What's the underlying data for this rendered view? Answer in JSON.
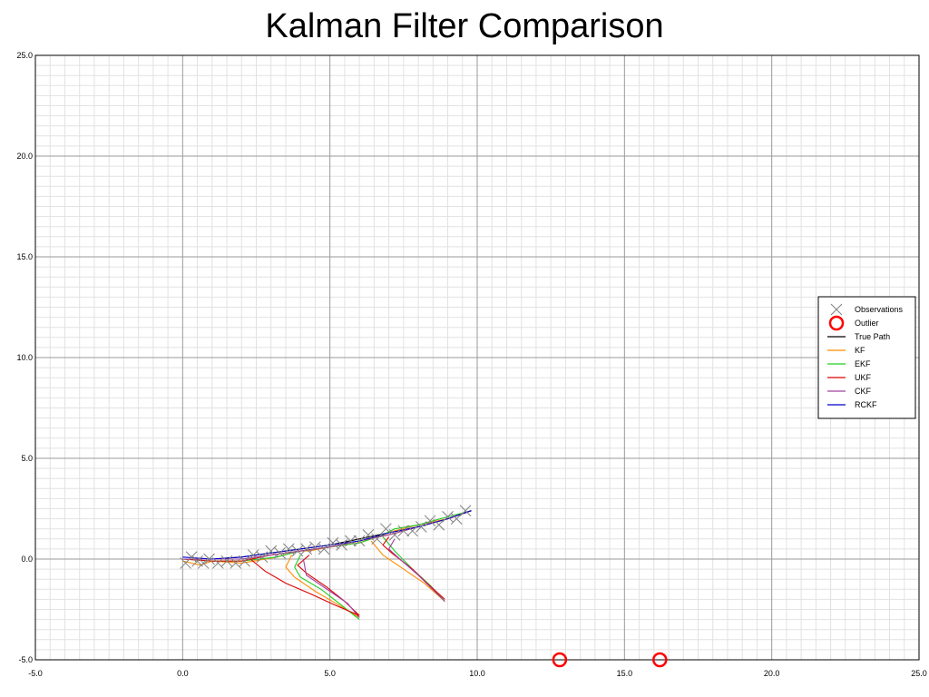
{
  "chart_data": {
    "type": "line",
    "title": "Kalman Filter Comparison",
    "xlabel": "",
    "ylabel": "",
    "xlim": [
      -5,
      25
    ],
    "ylim": [
      -5,
      25
    ],
    "x_ticks": [
      "-5.0",
      "0.0",
      "5.0",
      "10.0",
      "15.0",
      "20.0",
      "25.0"
    ],
    "y_ticks": [
      "-5.0",
      "0.0",
      "5.0",
      "10.0",
      "15.0",
      "20.0",
      "25.0"
    ],
    "grid": true,
    "legend_position": "right",
    "observations": {
      "name": "Observations",
      "points": [
        [
          0.1,
          -0.2
        ],
        [
          0.3,
          0.1
        ],
        [
          0.5,
          -0.1
        ],
        [
          0.7,
          -0.2
        ],
        [
          0.9,
          0.0
        ],
        [
          1.2,
          -0.2
        ],
        [
          1.5,
          -0.1
        ],
        [
          1.8,
          -0.2
        ],
        [
          2.1,
          -0.1
        ],
        [
          2.4,
          0.2
        ],
        [
          2.7,
          0.1
        ],
        [
          3.0,
          0.4
        ],
        [
          3.3,
          0.3
        ],
        [
          3.6,
          0.5
        ],
        [
          3.9,
          0.4
        ],
        [
          4.2,
          0.5
        ],
        [
          4.5,
          0.6
        ],
        [
          4.8,
          0.5
        ],
        [
          5.1,
          0.8
        ],
        [
          5.4,
          0.7
        ],
        [
          5.7,
          0.9
        ],
        [
          6.0,
          0.9
        ],
        [
          6.3,
          1.2
        ],
        [
          6.6,
          1.0
        ],
        [
          6.9,
          1.5
        ],
        [
          7.2,
          1.2
        ],
        [
          7.5,
          1.4
        ],
        [
          7.8,
          1.4
        ],
        [
          8.1,
          1.6
        ],
        [
          8.4,
          1.9
        ],
        [
          8.7,
          1.7
        ],
        [
          9.0,
          2.1
        ],
        [
          9.3,
          2.0
        ],
        [
          9.6,
          2.4
        ]
      ]
    },
    "outliers": {
      "name": "Outlier",
      "points": [
        [
          12.8,
          -5.0
        ],
        [
          16.2,
          -5.0
        ]
      ]
    },
    "series": [
      {
        "name": "True Path",
        "color": "#000000",
        "x": [
          0.0,
          1.0,
          2.0,
          3.0,
          4.0,
          5.0,
          6.0,
          7.0,
          8.0,
          9.0,
          9.8
        ],
        "y": [
          0.0,
          0.0,
          0.1,
          0.3,
          0.5,
          0.7,
          1.0,
          1.3,
          1.6,
          2.0,
          2.4
        ]
      },
      {
        "name": "KF",
        "color": "#ff8c00",
        "x": [
          0.0,
          0.6,
          1.0,
          2.0,
          3.2,
          3.7,
          4.0,
          4.3,
          5.0,
          6.0,
          6.4,
          6.8,
          7.2,
          8.0,
          9.0,
          9.8
        ],
        "y": [
          -0.1,
          -0.3,
          -0.1,
          -0.2,
          0.1,
          0.3,
          0.4,
          0.4,
          0.6,
          0.8,
          1.0,
          1.2,
          1.4,
          1.7,
          2.0,
          2.4
        ]
      },
      {
        "name": "EKF",
        "color": "#22cc22",
        "x": [
          0.0,
          1.0,
          2.0,
          3.2,
          3.7,
          4.0,
          4.5,
          5.0,
          6.0,
          6.4,
          6.8,
          7.2,
          8.0,
          9.0,
          9.8
        ],
        "y": [
          0.0,
          -0.1,
          -0.1,
          0.1,
          0.3,
          0.4,
          0.5,
          0.6,
          0.8,
          1.0,
          1.2,
          1.5,
          1.7,
          2.1,
          2.4
        ]
      },
      {
        "name": "UKF",
        "color": "#dd0000",
        "x": [
          0.0,
          1.0,
          2.0,
          3.0,
          4.0,
          5.0,
          6.0,
          7.0,
          8.0,
          9.0,
          9.8
        ],
        "y": [
          0.0,
          -0.1,
          -0.1,
          0.2,
          0.4,
          0.6,
          0.9,
          1.2,
          1.6,
          2.0,
          2.4
        ]
      },
      {
        "name": "CKF",
        "color": "#a040a0",
        "x": [
          0.0,
          1.0,
          2.0,
          3.0,
          4.0,
          5.0,
          6.0,
          7.0,
          8.0,
          9.0,
          9.8
        ],
        "y": [
          0.0,
          0.0,
          0.0,
          0.2,
          0.4,
          0.6,
          0.9,
          1.2,
          1.6,
          2.0,
          2.4
        ]
      },
      {
        "name": "RCKF",
        "color": "#0000cc",
        "x": [
          0.0,
          1.0,
          2.0,
          3.0,
          4.0,
          5.0,
          6.0,
          7.0,
          8.0,
          9.0,
          9.8
        ],
        "y": [
          0.1,
          0.0,
          0.1,
          0.3,
          0.5,
          0.7,
          0.9,
          1.3,
          1.6,
          2.0,
          2.4
        ]
      }
    ],
    "branches": [
      {
        "series": "KF",
        "color": "#ff8c00",
        "x": [
          3.7,
          3.5,
          3.8,
          4.5,
          5.2,
          6.0
        ],
        "y": [
          0.2,
          -0.4,
          -0.9,
          -1.6,
          -2.2,
          -2.9
        ]
      },
      {
        "series": "EKF",
        "color": "#22cc22",
        "x": [
          4.0,
          3.8,
          4.0,
          4.7,
          5.4,
          6.0
        ],
        "y": [
          0.2,
          -0.4,
          -0.9,
          -1.5,
          -2.3,
          -3.0
        ]
      },
      {
        "series": "UKF",
        "color": "#dd0000",
        "x": [
          4.3,
          3.9,
          4.2,
          4.9,
          5.5,
          6.0
        ],
        "y": [
          0.2,
          -0.3,
          -0.7,
          -1.4,
          -2.1,
          -2.8
        ]
      },
      {
        "series": "CKF",
        "color": "#a040a0",
        "x": [
          4.1,
          4.2,
          5.0,
          5.6,
          6.0
        ],
        "y": [
          0.0,
          -0.8,
          -1.6,
          -2.2,
          -2.9
        ]
      },
      {
        "series": "UKF",
        "color": "#dd0000",
        "x": [
          2.3,
          2.8,
          3.5,
          4.3,
          5.2,
          6.0
        ],
        "y": [
          0.0,
          -0.6,
          -1.2,
          -1.7,
          -2.3,
          -2.8
        ]
      },
      {
        "series": "KF",
        "color": "#ff8c00",
        "x": [
          6.4,
          6.8,
          7.5,
          8.2,
          8.9
        ],
        "y": [
          0.9,
          0.2,
          -0.5,
          -1.2,
          -2.1
        ]
      },
      {
        "series": "EKF",
        "color": "#22cc22",
        "x": [
          6.8,
          7.2,
          7.8,
          8.4,
          8.9
        ],
        "y": [
          1.1,
          0.4,
          -0.5,
          -1.3,
          -2.1
        ]
      },
      {
        "series": "UKF",
        "color": "#dd0000",
        "x": [
          7.0,
          6.8,
          7.1,
          7.8,
          8.3,
          8.9
        ],
        "y": [
          1.1,
          0.7,
          0.3,
          -0.5,
          -1.2,
          -2.0
        ]
      },
      {
        "series": "CKF",
        "color": "#a040a0",
        "x": [
          7.2,
          7.0,
          7.3,
          8.0,
          8.9
        ],
        "y": [
          1.0,
          0.5,
          0.1,
          -0.8,
          -2.1
        ]
      }
    ]
  }
}
